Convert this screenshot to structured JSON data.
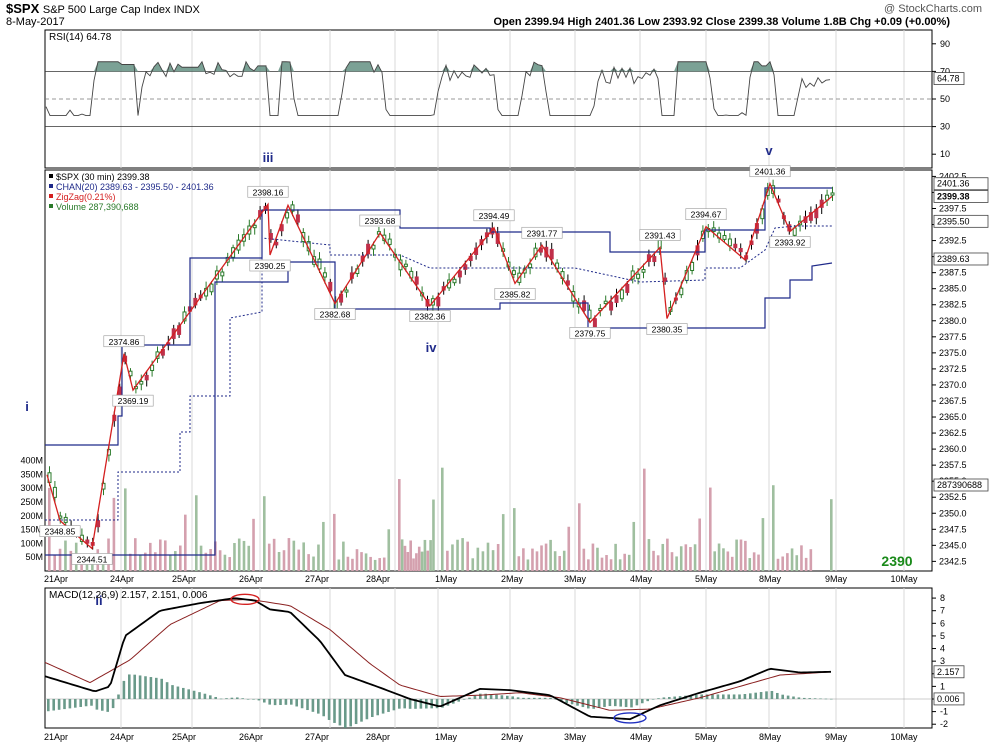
{
  "header": {
    "symbol": "$SPX",
    "name": "S&P 500 Large Cap Index",
    "exchange": "INDX",
    "date": "8-May-2017",
    "ohlc": "Open 2399.94  High 2401.36  Low 2393.92  Close 2399.38  Volume 1.8B  Chg +0.09 (+0.00%)",
    "watermark": "@ StockCharts.com"
  },
  "panels": {
    "rsi": {
      "legend": "RSI(14) 64.78",
      "last_label": "64.78",
      "ticks": [
        "90",
        "70",
        "50",
        "30",
        "10"
      ]
    },
    "price": {
      "legends": [
        "$SPX (30 min) 2399.38",
        "CHAN(20) 2389.63 - 2395.50 - 2401.36",
        "ZigZag(0.21%)",
        "Volume 287,390,688"
      ],
      "legend_colors": [
        "#000000",
        "#1f2a8a",
        "#d42020",
        "#2a7a2a"
      ],
      "ticks": [
        "2402.5",
        "2400.0",
        "2397.5",
        "2395.0",
        "2392.5",
        "2390.0",
        "2387.5",
        "2385.0",
        "2382.5",
        "2380.0",
        "2377.5",
        "2375.0",
        "2372.5",
        "2370.0",
        "2367.5",
        "2365.0",
        "2362.5",
        "2360.0",
        "2357.5",
        "2355.0",
        "2352.5",
        "2350.0",
        "2347.5",
        "2345.0",
        "2342.5"
      ],
      "right_labels": [
        "2401.36",
        "2399.38",
        "2395.50",
        "2389.63",
        "287390688"
      ],
      "volume_ticks": [
        "400M",
        "350M",
        "300M",
        "250M",
        "200M",
        "150M",
        "100M",
        "50M"
      ],
      "annotation_2390": "2390"
    },
    "macd": {
      "legend": "MACD(12,26,9) 2.157, 2.151, 0.006",
      "last_labels": [
        "2.157",
        "0.006"
      ],
      "ticks": [
        "8",
        "7",
        "6",
        "5",
        "4",
        "3",
        "2",
        "1",
        "0",
        "-1",
        "-2"
      ]
    }
  },
  "x_labels": [
    "21Apr",
    "24Apr",
    "25Apr",
    "26Apr",
    "27Apr",
    "28Apr",
    "1May",
    "2May",
    "3May",
    "4May",
    "5May",
    "8May",
    "9May",
    "10May"
  ],
  "wave_labels": [
    "i",
    "ii",
    "iii",
    "iv",
    "v"
  ],
  "zigzag_labels": [
    "2348.85",
    "2344.51",
    "2374.86",
    "2369.19",
    "2398.16",
    "2390.25",
    "2382.68",
    "2393.68",
    "2382.36",
    "2394.49",
    "2385.82",
    "2391.77",
    "2379.75",
    "2391.43",
    "2380.35",
    "2394.67",
    "2401.36",
    "2393.92"
  ],
  "colors": {
    "up": "#2a7a2a",
    "down": "#c0304a",
    "channel": "#1f2a8a",
    "zigzag": "#d42020",
    "wave": "#1f2a8a",
    "rsi_fill": "#5a8a7a",
    "volume_up": "#9fbf9f",
    "volume_down": "#d4a0ae",
    "macd_signal": "#8a2020",
    "hist": "#6a9a8a"
  },
  "chart_data": {
    "type": "candlestick",
    "interval": "30 min",
    "x_days": [
      "21Apr",
      "24Apr",
      "25Apr",
      "26Apr",
      "27Apr",
      "28Apr",
      "1May",
      "2May",
      "3May",
      "4May",
      "5May",
      "8May"
    ],
    "price_ylim": [
      2341,
      2403.5
    ],
    "zigzag_points": [
      {
        "day": "21Apr",
        "value": 2356
      },
      {
        "day": "21Apr",
        "value": 2348.85
      },
      {
        "day": "21Apr",
        "value": 2344.51
      },
      {
        "day": "24Apr",
        "value": 2374.86
      },
      {
        "day": "24Apr",
        "value": 2369.19
      },
      {
        "day": "26Apr",
        "value": 2398.16
      },
      {
        "day": "26Apr",
        "value": 2390.25
      },
      {
        "day": "26Apr",
        "value": 2398.0
      },
      {
        "day": "27Apr",
        "value": 2382.68
      },
      {
        "day": "28Apr",
        "value": 2393.68
      },
      {
        "day": "1May",
        "value": 2382.36
      },
      {
        "day": "2May",
        "value": 2394.49
      },
      {
        "day": "2May",
        "value": 2385.82
      },
      {
        "day": "2May",
        "value": 2391.77
      },
      {
        "day": "3May",
        "value": 2379.75
      },
      {
        "day": "4May",
        "value": 2391.43
      },
      {
        "day": "4May",
        "value": 2380.35
      },
      {
        "day": "5May",
        "value": 2394.67
      },
      {
        "day": "8May",
        "value": 2389.5
      },
      {
        "day": "8May",
        "value": 2401.36
      },
      {
        "day": "8May",
        "value": 2393.92
      },
      {
        "day": "8May",
        "value": 2399.38
      }
    ],
    "channel": {
      "upper": 2401.36,
      "middle": 2395.5,
      "lower": 2389.63
    },
    "last_close": 2399.38,
    "volume_last": 287390688,
    "rsi": {
      "period": 14,
      "last": 64.78,
      "levels": [
        70,
        50,
        30
      ],
      "ylim": [
        0,
        100
      ]
    },
    "macd": {
      "params": [
        12,
        26,
        9
      ],
      "macd": 2.157,
      "signal": 2.151,
      "histogram": 0.006,
      "ylim": [
        -2.3,
        8.8
      ]
    }
  }
}
